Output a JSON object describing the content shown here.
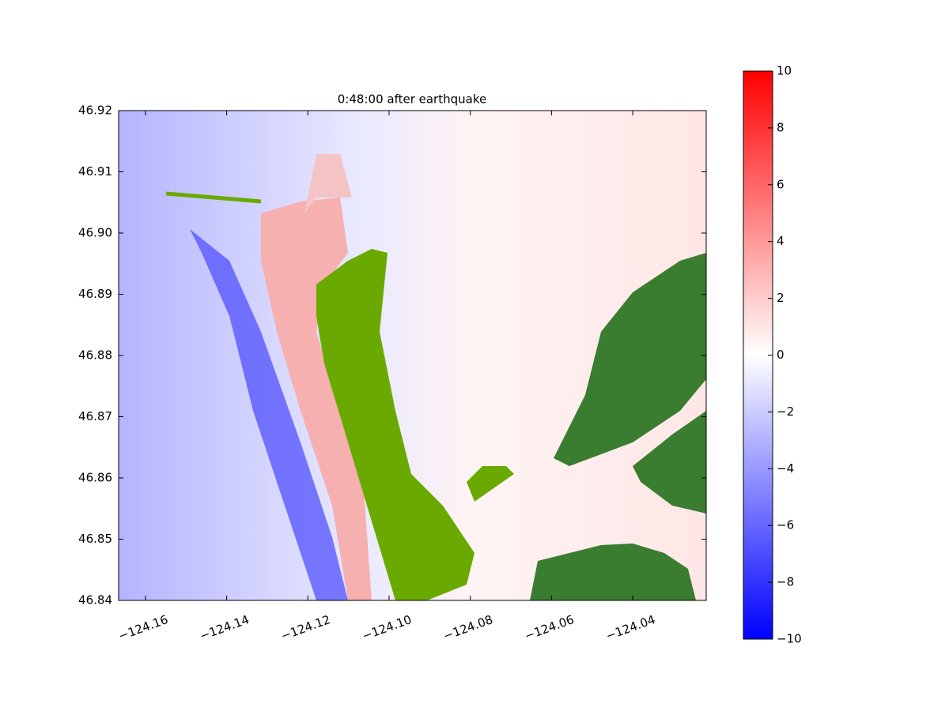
{
  "chart_data": {
    "type": "heatmap",
    "title": "0:48:00 after earthquake",
    "xlim": [
      -124.1666,
      -124.0219
    ],
    "xticks": [
      {
        "value": -124.16,
        "label": "−124.16"
      },
      {
        "value": -124.14,
        "label": "−124.14"
      },
      {
        "value": -124.12,
        "label": "−124.12"
      },
      {
        "value": -124.1,
        "label": "−124.10"
      },
      {
        "value": -124.08,
        "label": "−124.08"
      },
      {
        "value": -124.06,
        "label": "−124.06"
      },
      {
        "value": -124.04,
        "label": "−124.04"
      }
    ],
    "ylim": [
      46.84,
      46.92
    ],
    "yticks": [
      46.84,
      46.85,
      46.86,
      46.87,
      46.88,
      46.89,
      {
        "value": 46.9,
        "label": "46.90"
      },
      46.91,
      46.92
    ],
    "colorbar": {
      "lim": [
        -10,
        10
      ],
      "colors": [
        "#0000ff",
        "#ffffff",
        "#ff0000"
      ],
      "ticks": [
        {
          "value": -10,
          "label": "−10"
        },
        {
          "value": -8,
          "label": "−8"
        },
        {
          "value": -6,
          "label": "−6"
        },
        {
          "value": -4,
          "label": "−4"
        },
        {
          "value": -2,
          "label": "−2"
        },
        0,
        2,
        4,
        6,
        8,
        10
      ]
    }
  }
}
